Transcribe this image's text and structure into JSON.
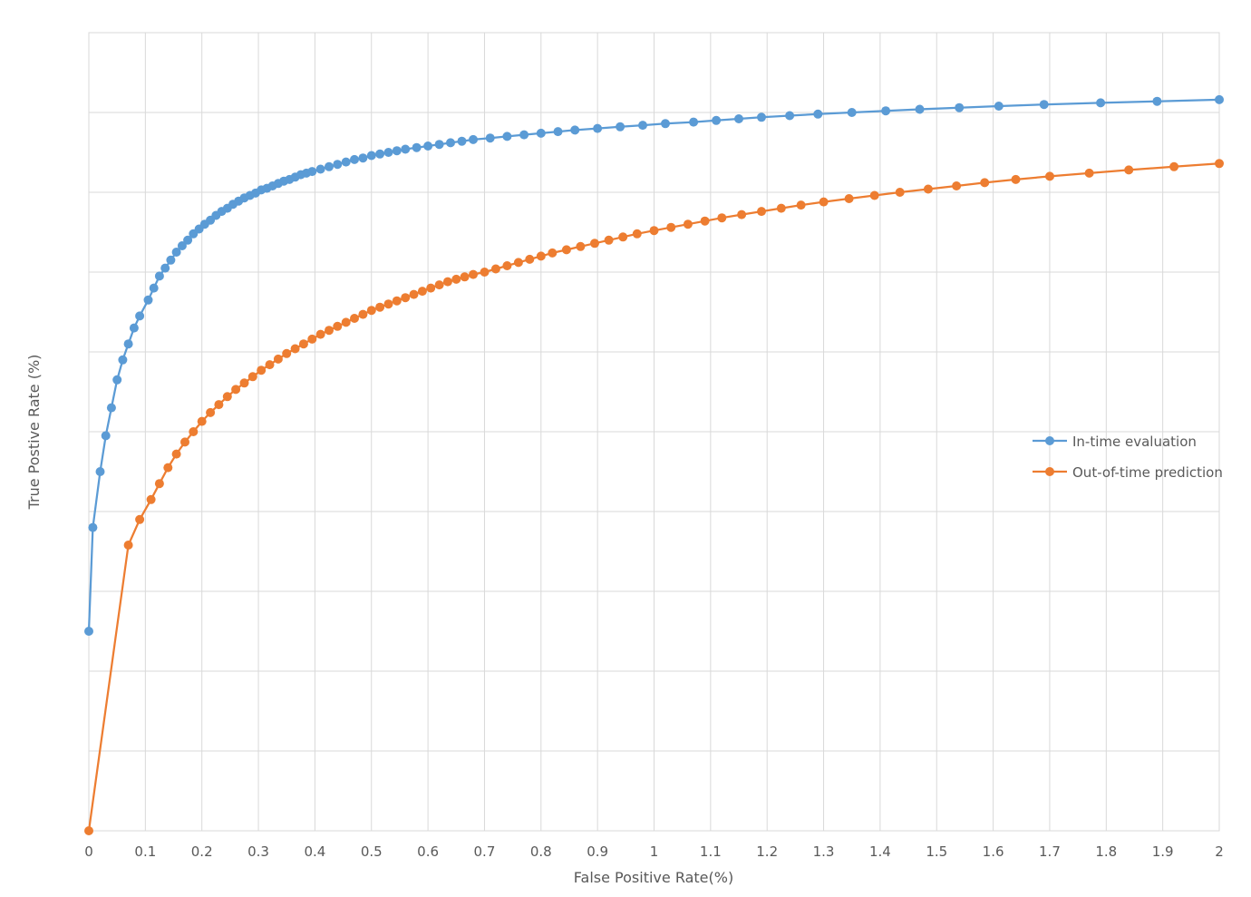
{
  "chart_data": {
    "type": "line",
    "title": "",
    "xlabel": "False Positive Rate(%)",
    "ylabel": "True Postive Rate (%)",
    "xlim": [
      0,
      2
    ],
    "ylim": [
      0,
      10
    ],
    "x_ticks": [
      "0",
      "0.1",
      "0.2",
      "0.3",
      "0.4",
      "0.5",
      "0.6",
      "0.7",
      "0.8",
      "0.9",
      "1",
      "1.1",
      "1.2",
      "1.3",
      "1.4",
      "1.5",
      "1.6",
      "1.7",
      "1.8",
      "1.9",
      "2"
    ],
    "y_ticks_labeled": false,
    "grid": true,
    "legend_position": "right",
    "series": [
      {
        "name": "In-time evaluation",
        "color": "#5b9bd5",
        "x": [
          0,
          0.007,
          0.02,
          0.03,
          0.04,
          0.05,
          0.06,
          0.07,
          0.08,
          0.09,
          0.105,
          0.115,
          0.125,
          0.135,
          0.145,
          0.155,
          0.165,
          0.175,
          0.185,
          0.195,
          0.205,
          0.215,
          0.225,
          0.235,
          0.245,
          0.255,
          0.265,
          0.275,
          0.285,
          0.295,
          0.305,
          0.315,
          0.325,
          0.335,
          0.345,
          0.355,
          0.365,
          0.375,
          0.385,
          0.395,
          0.41,
          0.425,
          0.44,
          0.455,
          0.47,
          0.485,
          0.5,
          0.515,
          0.53,
          0.545,
          0.56,
          0.58,
          0.6,
          0.62,
          0.64,
          0.66,
          0.68,
          0.71,
          0.74,
          0.77,
          0.8,
          0.83,
          0.86,
          0.9,
          0.94,
          0.98,
          1.02,
          1.07,
          1.11,
          1.15,
          1.19,
          1.24,
          1.29,
          1.35,
          1.41,
          1.47,
          1.54,
          1.61,
          1.69,
          1.79,
          1.89,
          2.0
        ],
        "y": [
          2.5,
          3.8,
          4.5,
          4.95,
          5.3,
          5.65,
          5.9,
          6.1,
          6.3,
          6.45,
          6.65,
          6.8,
          6.95,
          7.05,
          7.15,
          7.25,
          7.33,
          7.4,
          7.48,
          7.54,
          7.6,
          7.65,
          7.71,
          7.76,
          7.8,
          7.85,
          7.89,
          7.93,
          7.96,
          7.99,
          8.03,
          8.05,
          8.08,
          8.11,
          8.14,
          8.16,
          8.19,
          8.22,
          8.24,
          8.26,
          8.29,
          8.32,
          8.35,
          8.38,
          8.41,
          8.43,
          8.46,
          8.48,
          8.5,
          8.52,
          8.54,
          8.56,
          8.58,
          8.6,
          8.62,
          8.64,
          8.66,
          8.68,
          8.7,
          8.72,
          8.74,
          8.76,
          8.78,
          8.8,
          8.82,
          8.84,
          8.86,
          8.88,
          8.9,
          8.92,
          8.94,
          8.96,
          8.98,
          9.0,
          9.02,
          9.04,
          9.06,
          9.08,
          9.1,
          9.12,
          9.14,
          9.16
        ]
      },
      {
        "name": "Out-of-time prediction",
        "color": "#ed7d31",
        "x": [
          0,
          0.07,
          0.09,
          0.11,
          0.125,
          0.14,
          0.155,
          0.17,
          0.185,
          0.2,
          0.215,
          0.23,
          0.245,
          0.26,
          0.275,
          0.29,
          0.305,
          0.32,
          0.335,
          0.35,
          0.365,
          0.38,
          0.395,
          0.41,
          0.425,
          0.44,
          0.455,
          0.47,
          0.485,
          0.5,
          0.515,
          0.53,
          0.545,
          0.56,
          0.575,
          0.59,
          0.605,
          0.62,
          0.635,
          0.65,
          0.665,
          0.68,
          0.7,
          0.72,
          0.74,
          0.76,
          0.78,
          0.8,
          0.82,
          0.845,
          0.87,
          0.895,
          0.92,
          0.945,
          0.97,
          1.0,
          1.03,
          1.06,
          1.09,
          1.12,
          1.155,
          1.19,
          1.225,
          1.26,
          1.3,
          1.345,
          1.39,
          1.435,
          1.485,
          1.535,
          1.585,
          1.64,
          1.7,
          1.77,
          1.84,
          1.92,
          2.0
        ],
        "y": [
          0,
          3.58,
          3.9,
          4.15,
          4.35,
          4.55,
          4.72,
          4.87,
          5.0,
          5.13,
          5.24,
          5.34,
          5.44,
          5.53,
          5.61,
          5.69,
          5.77,
          5.84,
          5.91,
          5.98,
          6.04,
          6.1,
          6.16,
          6.22,
          6.27,
          6.32,
          6.37,
          6.42,
          6.47,
          6.52,
          6.56,
          6.6,
          6.64,
          6.68,
          6.72,
          6.76,
          6.8,
          6.84,
          6.88,
          6.91,
          6.94,
          6.97,
          7.0,
          7.04,
          7.08,
          7.12,
          7.16,
          7.2,
          7.24,
          7.28,
          7.32,
          7.36,
          7.4,
          7.44,
          7.48,
          7.52,
          7.56,
          7.6,
          7.64,
          7.68,
          7.72,
          7.76,
          7.8,
          7.84,
          7.88,
          7.92,
          7.96,
          8.0,
          8.04,
          8.08,
          8.12,
          8.16,
          8.2,
          8.24,
          8.28,
          8.32,
          8.36
        ]
      }
    ]
  }
}
